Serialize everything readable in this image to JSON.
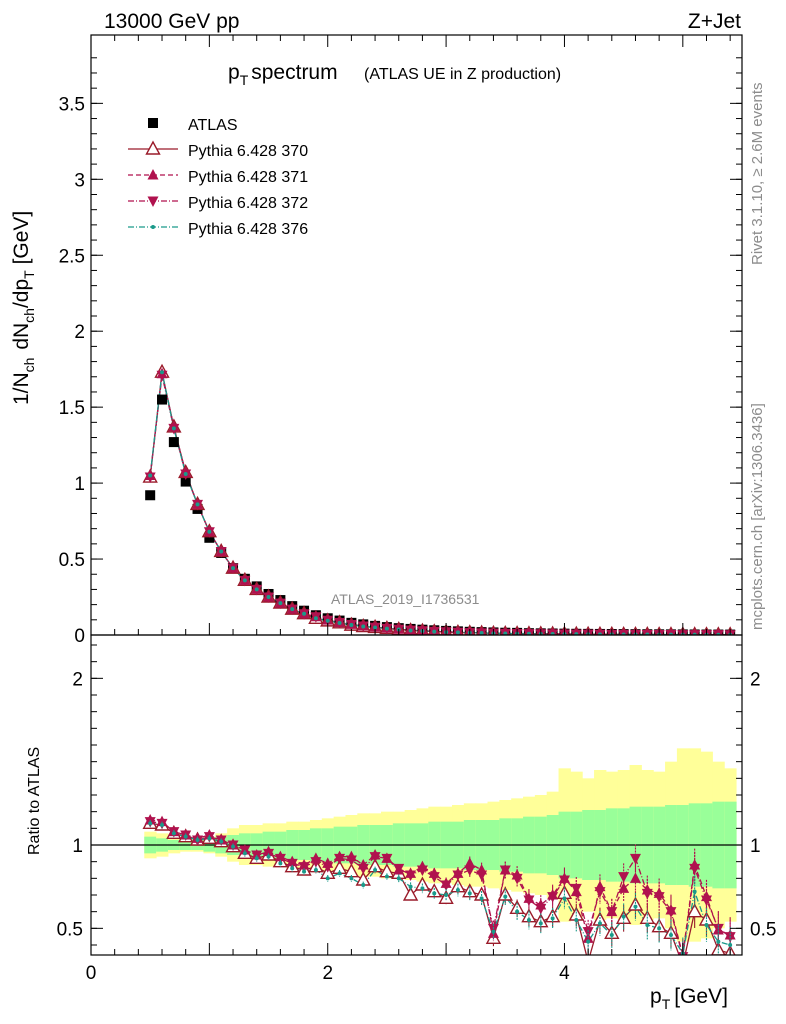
{
  "header": {
    "energy_label": "13000 GeV pp",
    "process_label": "Z+Jet"
  },
  "side_labels": {
    "rivet": "Rivet 3.1.10, ≥ 2.6M events",
    "mcplots": "mcplots.cern.ch [arXiv:1306.3436]"
  },
  "watermark": "ATLAS_2019_I1736531",
  "colors": {
    "atlas": "#000000",
    "p370": "#9a1b2a",
    "p371": "#b0124e",
    "p372": "#b0124e",
    "p376": "#1a9a8a",
    "band_inner": "#99ff99",
    "band_outer": "#ffff99",
    "ratio_line": "#000000"
  },
  "chart_data": [
    {
      "type": "scatter",
      "panel": "main",
      "title_main": "p_T spectrum",
      "title_sub": "(ATLAS UE in Z production)",
      "xlabel": "p_T [GeV]",
      "ylabel": "1/N_ch dN_ch/dp_T [GeV]",
      "xlim": [
        0,
        5.5
      ],
      "ylim": [
        0,
        3.95
      ],
      "yticks": [
        0,
        0.5,
        1,
        1.5,
        2,
        2.5,
        3,
        3.5
      ],
      "ytick_labels": [
        "0",
        "0.5",
        "1",
        "1.5",
        "2",
        "2.5",
        "3",
        "3.5"
      ],
      "x": [
        0.5,
        0.6,
        0.7,
        0.8,
        0.9,
        1.0,
        1.1,
        1.2,
        1.3,
        1.4,
        1.5,
        1.6,
        1.7,
        1.8,
        1.9,
        2.0,
        2.1,
        2.2,
        2.3,
        2.4,
        2.5,
        2.6,
        2.7,
        2.8,
        2.9,
        3.0,
        3.1,
        3.2,
        3.3,
        3.4,
        3.5,
        3.6,
        3.7,
        3.8,
        3.9,
        4.0,
        4.1,
        4.2,
        4.3,
        4.4,
        4.5,
        4.6,
        4.7,
        4.8,
        4.9,
        5.0,
        5.1,
        5.2,
        5.3,
        5.4
      ],
      "series": [
        {
          "name": "ATLAS",
          "marker": "square",
          "values": [
            0.92,
            1.55,
            1.27,
            1.01,
            0.83,
            0.64,
            0.54,
            0.44,
            0.37,
            0.32,
            0.27,
            0.23,
            0.19,
            0.16,
            0.13,
            0.11,
            0.095,
            0.08,
            0.07,
            0.06,
            0.052,
            0.045,
            0.04,
            0.035,
            0.031,
            0.027,
            0.024,
            0.021,
            0.019,
            0.017,
            0.015,
            0.014,
            0.012,
            0.011,
            0.01,
            0.009,
            0.008,
            0.0075,
            0.007,
            0.0065,
            0.006,
            0.0055,
            0.005,
            0.0046,
            0.0042,
            0.0039,
            0.0036,
            0.0033,
            0.003,
            0.0028
          ]
        },
        {
          "name": "Pythia 6.428 370",
          "marker": "triangle-open",
          "line": "solid",
          "values": [
            1.04,
            1.73,
            1.37,
            1.07,
            0.86,
            0.68,
            0.55,
            0.44,
            0.36,
            0.3,
            0.25,
            0.21,
            0.17,
            0.14,
            0.11,
            0.093,
            0.08,
            0.065,
            0.056,
            0.05,
            0.043,
            0.036,
            0.029,
            0.026,
            0.022,
            0.019,
            0.017,
            0.015,
            0.013,
            0.011,
            0.01,
            0.009,
            0.0082,
            0.0075,
            0.0068,
            0.0062,
            0.0056,
            0.005,
            0.0046,
            0.0042,
            0.0038,
            0.0035,
            0.0032,
            0.0029,
            0.0027,
            0.0025,
            0.0023,
            0.0021,
            0.0019,
            0.0017
          ]
        },
        {
          "name": "Pythia 6.428 371",
          "marker": "triangle-up",
          "line": "dashed",
          "values": [
            1.05,
            1.72,
            1.37,
            1.07,
            0.86,
            0.68,
            0.55,
            0.44,
            0.36,
            0.3,
            0.25,
            0.21,
            0.17,
            0.14,
            0.12,
            0.098,
            0.082,
            0.07,
            0.06,
            0.052,
            0.045,
            0.038,
            0.032,
            0.028,
            0.024,
            0.021,
            0.018,
            0.016,
            0.014,
            0.012,
            0.011,
            0.0098,
            0.0088,
            0.008,
            0.0072,
            0.0066,
            0.006,
            0.0055,
            0.005,
            0.0046,
            0.0042,
            0.0038,
            0.0035,
            0.0032,
            0.003,
            0.0028,
            0.0026,
            0.0024,
            0.0022,
            0.002
          ]
        },
        {
          "name": "Pythia 6.428 372",
          "marker": "triangle-down",
          "line": "dashdot",
          "values": [
            1.04,
            1.71,
            1.36,
            1.06,
            0.86,
            0.68,
            0.55,
            0.44,
            0.36,
            0.3,
            0.25,
            0.21,
            0.17,
            0.14,
            0.12,
            0.097,
            0.082,
            0.069,
            0.059,
            0.051,
            0.044,
            0.038,
            0.032,
            0.028,
            0.024,
            0.021,
            0.018,
            0.016,
            0.014,
            0.012,
            0.011,
            0.0097,
            0.0087,
            0.0079,
            0.0071,
            0.0065,
            0.0059,
            0.0054,
            0.0049,
            0.0045,
            0.0041,
            0.0038,
            0.0035,
            0.0032,
            0.0029,
            0.0027,
            0.0025,
            0.0023,
            0.0021,
            0.0019
          ]
        },
        {
          "name": "Pythia 6.428 376",
          "marker": "dot",
          "line": "dashdot",
          "values": [
            1.05,
            1.73,
            1.36,
            1.06,
            0.86,
            0.68,
            0.55,
            0.44,
            0.36,
            0.3,
            0.25,
            0.21,
            0.17,
            0.14,
            0.11,
            0.094,
            0.079,
            0.066,
            0.056,
            0.049,
            0.042,
            0.036,
            0.03,
            0.026,
            0.022,
            0.019,
            0.017,
            0.015,
            0.013,
            0.011,
            0.01,
            0.009,
            0.008,
            0.0073,
            0.0066,
            0.006,
            0.0054,
            0.0049,
            0.0045,
            0.0041,
            0.0037,
            0.0034,
            0.0031,
            0.0028,
            0.0026,
            0.0024,
            0.0022,
            0.002,
            0.0018,
            0.0016
          ]
        }
      ]
    },
    {
      "type": "line",
      "panel": "ratio",
      "xlabel": "p_T [GeV]",
      "ylabel": "Ratio to ATLAS",
      "xlim": [
        0,
        5.5
      ],
      "ylim": [
        0.34,
        2.26
      ],
      "yticks": [
        0.5,
        1,
        2
      ],
      "ytick_labels": [
        "0.5",
        "1",
        "2"
      ],
      "xticks": [
        0,
        2,
        4
      ],
      "xtick_labels": [
        "0",
        "2",
        "4"
      ],
      "x": [
        0.5,
        0.6,
        0.7,
        0.8,
        0.9,
        1.0,
        1.1,
        1.2,
        1.3,
        1.4,
        1.5,
        1.6,
        1.7,
        1.8,
        1.9,
        2.0,
        2.1,
        2.2,
        2.3,
        2.4,
        2.5,
        2.6,
        2.7,
        2.8,
        2.9,
        3.0,
        3.1,
        3.2,
        3.3,
        3.4,
        3.5,
        3.6,
        3.7,
        3.8,
        3.9,
        4.0,
        4.1,
        4.2,
        4.3,
        4.4,
        4.5,
        4.6,
        4.7,
        4.8,
        4.9,
        5.0,
        5.1,
        5.2,
        5.3,
        5.4
      ],
      "band_inner_halfwidth": [
        0.05,
        0.04,
        0.03,
        0.03,
        0.03,
        0.04,
        0.05,
        0.06,
        0.07,
        0.07,
        0.08,
        0.08,
        0.09,
        0.09,
        0.1,
        0.1,
        0.11,
        0.11,
        0.12,
        0.12,
        0.12,
        0.13,
        0.13,
        0.13,
        0.14,
        0.14,
        0.14,
        0.15,
        0.15,
        0.15,
        0.16,
        0.16,
        0.17,
        0.17,
        0.18,
        0.2,
        0.2,
        0.21,
        0.21,
        0.22,
        0.22,
        0.23,
        0.23,
        0.23,
        0.24,
        0.24,
        0.25,
        0.25,
        0.26,
        0.26
      ],
      "band_outer_halfwidth": [
        0.08,
        0.07,
        0.05,
        0.04,
        0.04,
        0.05,
        0.07,
        0.1,
        0.12,
        0.12,
        0.13,
        0.13,
        0.14,
        0.14,
        0.15,
        0.16,
        0.17,
        0.18,
        0.19,
        0.19,
        0.2,
        0.2,
        0.21,
        0.22,
        0.23,
        0.23,
        0.24,
        0.25,
        0.25,
        0.26,
        0.27,
        0.28,
        0.29,
        0.3,
        0.32,
        0.46,
        0.44,
        0.4,
        0.45,
        0.44,
        0.45,
        0.48,
        0.45,
        0.44,
        0.5,
        0.58,
        0.58,
        0.56,
        0.5,
        0.46
      ],
      "series": [
        {
          "name": "Pythia 6.428 370",
          "values": [
            1.13,
            1.12,
            1.07,
            1.05,
            1.03,
            1.04,
            1.02,
            0.99,
            0.95,
            0.92,
            0.94,
            0.9,
            0.87,
            0.85,
            0.87,
            0.83,
            0.86,
            0.84,
            0.79,
            0.87,
            0.84,
            0.83,
            0.7,
            0.76,
            0.72,
            0.68,
            0.75,
            0.72,
            0.7,
            0.44,
            0.7,
            0.62,
            0.57,
            0.54,
            0.57,
            0.71,
            0.58,
            0.3,
            0.55,
            0.47,
            0.56,
            0.64,
            0.56,
            0.51,
            0.47,
            0.28,
            0.6,
            0.55,
            0.37,
            0.35
          ]
        },
        {
          "name": "Pythia 6.428 371",
          "values": [
            1.15,
            1.14,
            1.08,
            1.06,
            1.04,
            1.06,
            1.03,
            1.0,
            0.97,
            0.94,
            0.96,
            0.93,
            0.9,
            0.88,
            0.92,
            0.89,
            0.93,
            0.93,
            0.88,
            0.94,
            0.92,
            0.85,
            0.83,
            0.87,
            0.83,
            0.77,
            0.83,
            0.89,
            0.85,
            0.47,
            0.85,
            0.82,
            0.68,
            0.64,
            0.7,
            0.8,
            0.72,
            0.44,
            0.75,
            0.6,
            0.74,
            0.8,
            0.73,
            0.71,
            0.61,
            0.34,
            0.88,
            0.69,
            0.49,
            0.46
          ]
        },
        {
          "name": "Pythia 6.428 372",
          "values": [
            1.14,
            1.13,
            1.08,
            1.06,
            1.03,
            1.05,
            1.03,
            1.0,
            0.97,
            0.94,
            0.95,
            0.92,
            0.89,
            0.87,
            0.9,
            0.87,
            0.92,
            0.91,
            0.86,
            0.93,
            0.92,
            0.86,
            0.82,
            0.85,
            0.81,
            0.76,
            0.82,
            0.85,
            0.82,
            0.5,
            0.85,
            0.8,
            0.67,
            0.62,
            0.69,
            0.79,
            0.74,
            0.48,
            0.72,
            0.6,
            0.81,
            0.92,
            0.71,
            0.69,
            0.6,
            0.33,
            0.86,
            0.67,
            0.5,
            0.45
          ]
        },
        {
          "name": "Pythia 6.428 376",
          "values": [
            1.13,
            1.12,
            1.07,
            1.05,
            1.03,
            1.04,
            1.02,
            0.99,
            0.95,
            0.92,
            0.93,
            0.89,
            0.86,
            0.84,
            0.85,
            0.8,
            0.83,
            0.8,
            0.76,
            0.85,
            0.81,
            0.8,
            0.75,
            0.74,
            0.71,
            0.7,
            0.73,
            0.71,
            0.68,
            0.48,
            0.69,
            0.6,
            0.55,
            0.53,
            0.56,
            0.68,
            0.55,
            0.42,
            0.53,
            0.46,
            0.57,
            0.63,
            0.52,
            0.5,
            0.46,
            0.35,
            0.72,
            0.52,
            0.42,
            0.4
          ]
        }
      ]
    }
  ]
}
